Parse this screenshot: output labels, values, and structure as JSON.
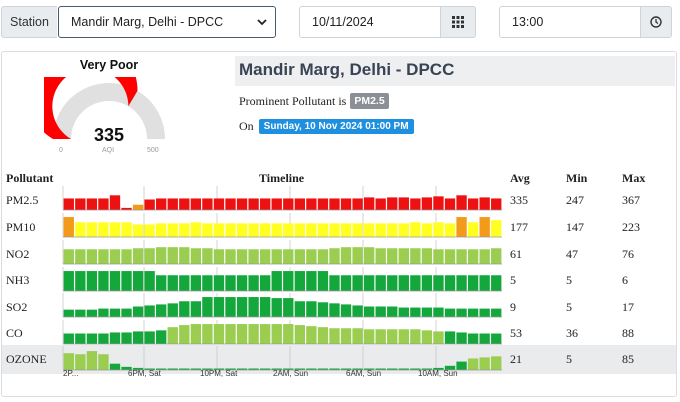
{
  "filters": {
    "station_label": "Station",
    "station_value": "Mandir Marg, Delhi - DPCC",
    "date_value": "10/11/2024",
    "time_value": "13:00"
  },
  "gauge": {
    "status": "Very Poor",
    "value": "335",
    "unit": "AQI",
    "min": "0",
    "max": "500",
    "value_fraction": 0.67,
    "color": "#ff0000"
  },
  "station_title": "Mandir Marg, Delhi - DPCC",
  "prominent_text": "Prominent Pollutant is",
  "prominent_pollutant": "PM2.5",
  "on_text": "On",
  "datetime_badge": "Sunday, 10 Nov 2024 01:00 PM",
  "table": {
    "headers": {
      "pollutant": "Pollutant",
      "timeline": "Timeline",
      "avg": "Avg",
      "min": "Min",
      "max": "Max"
    },
    "rows": [
      {
        "name": "PM2.5",
        "avg": "335",
        "min": "247",
        "max": "367"
      },
      {
        "name": "PM10",
        "avg": "177",
        "min": "147",
        "max": "223"
      },
      {
        "name": "NO2",
        "avg": "61",
        "min": "47",
        "max": "76"
      },
      {
        "name": "NH3",
        "avg": "5",
        "min": "5",
        "max": "6"
      },
      {
        "name": "SO2",
        "avg": "9",
        "min": "5",
        "max": "17"
      },
      {
        "name": "CO",
        "avg": "53",
        "min": "36",
        "max": "88"
      },
      {
        "name": "OZONE",
        "avg": "21",
        "min": "5",
        "max": "85"
      }
    ]
  },
  "chart_data": {
    "type": "bar",
    "x_tick_labels": [
      "2P...",
      "6PM, Sat",
      "10PM, Sat",
      "2AM, Sun",
      "6AM, Sun",
      "10AM, Sun"
    ],
    "colors": {
      "very_poor": "#ee1111",
      "poor": "#f39a1a",
      "moderate": "#ffff22",
      "satisfactory": "#9acd50",
      "good": "#14a83c"
    },
    "series": [
      {
        "name": "PM2.5",
        "values": [
          0.55,
          0.55,
          0.55,
          0.55,
          0.7,
          0.1,
          0.25,
          0.5,
          0.55,
          0.55,
          0.55,
          0.55,
          0.55,
          0.55,
          0.55,
          0.55,
          0.55,
          0.55,
          0.55,
          0.55,
          0.55,
          0.55,
          0.55,
          0.55,
          0.55,
          0.55,
          0.6,
          0.55,
          0.6,
          0.6,
          0.55,
          0.6,
          0.65,
          0.55,
          0.7,
          0.55,
          0.6,
          0.55
        ],
        "levels": [
          "very_poor",
          "very_poor",
          "very_poor",
          "very_poor",
          "very_poor",
          "very_poor",
          "poor",
          "very_poor",
          "very_poor",
          "very_poor",
          "very_poor",
          "very_poor",
          "very_poor",
          "very_poor",
          "very_poor",
          "very_poor",
          "very_poor",
          "very_poor",
          "very_poor",
          "very_poor",
          "very_poor",
          "very_poor",
          "very_poor",
          "very_poor",
          "very_poor",
          "very_poor",
          "very_poor",
          "very_poor",
          "very_poor",
          "very_poor",
          "very_poor",
          "very_poor",
          "very_poor",
          "very_poor",
          "very_poor",
          "very_poor",
          "very_poor",
          "very_poor"
        ]
      },
      {
        "name": "PM10",
        "values": [
          0.95,
          0.7,
          0.7,
          0.7,
          0.7,
          0.7,
          0.6,
          0.6,
          0.65,
          0.65,
          0.65,
          0.7,
          0.65,
          0.65,
          0.65,
          0.65,
          0.65,
          0.65,
          0.65,
          0.65,
          0.65,
          0.65,
          0.65,
          0.65,
          0.65,
          0.65,
          0.65,
          0.65,
          0.65,
          0.65,
          0.7,
          0.65,
          0.7,
          0.65,
          0.95,
          0.7,
          0.95,
          0.8
        ],
        "levels": [
          "poor",
          "moderate",
          "moderate",
          "moderate",
          "moderate",
          "moderate",
          "moderate",
          "moderate",
          "moderate",
          "moderate",
          "moderate",
          "moderate",
          "moderate",
          "moderate",
          "moderate",
          "moderate",
          "moderate",
          "moderate",
          "moderate",
          "moderate",
          "moderate",
          "moderate",
          "moderate",
          "moderate",
          "moderate",
          "moderate",
          "moderate",
          "moderate",
          "moderate",
          "moderate",
          "moderate",
          "moderate",
          "moderate",
          "moderate",
          "poor",
          "moderate",
          "poor",
          "moderate"
        ]
      },
      {
        "name": "NO2",
        "values": [
          0.7,
          0.7,
          0.7,
          0.7,
          0.7,
          0.7,
          0.75,
          0.75,
          0.8,
          0.8,
          0.8,
          0.75,
          0.75,
          0.7,
          0.7,
          0.7,
          0.7,
          0.7,
          0.7,
          0.7,
          0.7,
          0.7,
          0.7,
          0.75,
          0.8,
          0.8,
          0.8,
          0.75,
          0.75,
          0.75,
          0.75,
          0.75,
          0.7,
          0.7,
          0.7,
          0.7,
          0.7,
          0.75
        ],
        "levels": [
          "satisfactory",
          "satisfactory",
          "satisfactory",
          "satisfactory",
          "satisfactory",
          "satisfactory",
          "satisfactory",
          "satisfactory",
          "satisfactory",
          "satisfactory",
          "satisfactory",
          "satisfactory",
          "satisfactory",
          "satisfactory",
          "satisfactory",
          "satisfactory",
          "satisfactory",
          "satisfactory",
          "satisfactory",
          "satisfactory",
          "satisfactory",
          "satisfactory",
          "satisfactory",
          "satisfactory",
          "satisfactory",
          "satisfactory",
          "satisfactory",
          "satisfactory",
          "satisfactory",
          "satisfactory",
          "satisfactory",
          "satisfactory",
          "satisfactory",
          "satisfactory",
          "satisfactory",
          "satisfactory",
          "satisfactory",
          "satisfactory"
        ]
      },
      {
        "name": "NH3",
        "values": [
          0.95,
          0.95,
          0.95,
          0.95,
          0.95,
          0.95,
          0.95,
          0.95,
          0.75,
          0.75,
          0.75,
          0.75,
          0.75,
          0.75,
          0.75,
          0.75,
          0.75,
          0.75,
          0.95,
          0.95,
          0.95,
          0.95,
          0.95,
          0.75,
          0.75,
          0.75,
          0.75,
          0.75,
          0.75,
          0.75,
          0.75,
          0.75,
          0.75,
          0.75,
          0.75,
          0.75,
          0.75,
          0.75
        ],
        "levels": [
          "good",
          "good",
          "good",
          "good",
          "good",
          "good",
          "good",
          "good",
          "good",
          "good",
          "good",
          "good",
          "good",
          "good",
          "good",
          "good",
          "good",
          "good",
          "good",
          "good",
          "good",
          "good",
          "good",
          "good",
          "good",
          "good",
          "good",
          "good",
          "good",
          "good",
          "good",
          "good",
          "good",
          "good",
          "good",
          "good",
          "good",
          "good"
        ]
      },
      {
        "name": "SO2",
        "values": [
          0.35,
          0.35,
          0.35,
          0.4,
          0.4,
          0.4,
          0.5,
          0.55,
          0.6,
          0.65,
          0.75,
          0.75,
          0.95,
          0.95,
          0.95,
          0.95,
          0.95,
          0.95,
          0.9,
          0.9,
          0.75,
          0.75,
          0.7,
          0.65,
          0.6,
          0.55,
          0.5,
          0.5,
          0.5,
          0.45,
          0.45,
          0.45,
          0.45,
          0.4,
          0.4,
          0.4,
          0.4,
          0.4
        ],
        "levels": [
          "good",
          "good",
          "good",
          "good",
          "good",
          "good",
          "good",
          "good",
          "good",
          "good",
          "good",
          "good",
          "good",
          "good",
          "good",
          "good",
          "good",
          "good",
          "good",
          "good",
          "good",
          "good",
          "good",
          "good",
          "good",
          "good",
          "good",
          "good",
          "good",
          "good",
          "good",
          "good",
          "good",
          "good",
          "good",
          "good",
          "good",
          "good"
        ]
      },
      {
        "name": "CO",
        "values": [
          0.5,
          0.5,
          0.5,
          0.5,
          0.55,
          0.55,
          0.6,
          0.6,
          0.65,
          0.8,
          0.9,
          0.95,
          0.95,
          0.95,
          0.95,
          0.95,
          0.95,
          0.95,
          0.95,
          0.95,
          0.9,
          0.85,
          0.8,
          0.75,
          0.75,
          0.75,
          0.7,
          0.7,
          0.7,
          0.7,
          0.7,
          0.65,
          0.6,
          0.6,
          0.55,
          0.5,
          0.5,
          0.5
        ],
        "levels": [
          "good",
          "good",
          "good",
          "good",
          "good",
          "good",
          "good",
          "good",
          "good",
          "satisfactory",
          "satisfactory",
          "satisfactory",
          "satisfactory",
          "satisfactory",
          "satisfactory",
          "satisfactory",
          "satisfactory",
          "satisfactory",
          "satisfactory",
          "satisfactory",
          "satisfactory",
          "satisfactory",
          "satisfactory",
          "satisfactory",
          "satisfactory",
          "satisfactory",
          "satisfactory",
          "satisfactory",
          "satisfactory",
          "satisfactory",
          "satisfactory",
          "satisfactory",
          "satisfactory",
          "good",
          "good",
          "good",
          "good",
          "good"
        ]
      },
      {
        "name": "OZONE",
        "values": [
          0.8,
          0.75,
          0.9,
          0.75,
          0.3,
          0.15,
          0.1,
          0.05,
          0.05,
          0.05,
          0.05,
          0.05,
          0.05,
          0.05,
          0.05,
          0.05,
          0.05,
          0.05,
          0.05,
          0.05,
          0.05,
          0.05,
          0.05,
          0.05,
          0.05,
          0.05,
          0.05,
          0.05,
          0.05,
          0.05,
          0.05,
          0.05,
          0.1,
          0.2,
          0.4,
          0.55,
          0.6,
          0.65
        ],
        "levels": [
          "satisfactory",
          "satisfactory",
          "satisfactory",
          "satisfactory",
          "good",
          "good",
          "good",
          "good",
          "good",
          "good",
          "good",
          "good",
          "good",
          "good",
          "good",
          "good",
          "good",
          "good",
          "good",
          "good",
          "good",
          "good",
          "good",
          "good",
          "good",
          "good",
          "good",
          "good",
          "good",
          "good",
          "good",
          "good",
          "good",
          "good",
          "good",
          "satisfactory",
          "satisfactory",
          "satisfactory"
        ]
      }
    ]
  }
}
